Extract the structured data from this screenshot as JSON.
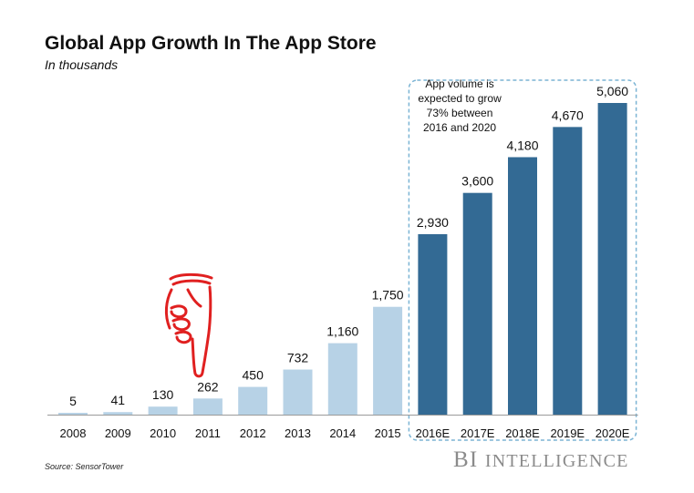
{
  "header": {
    "title": "Global App Growth In The App Store",
    "subtitle": "In thousands"
  },
  "footer": {
    "source": "Source: SensorTower",
    "brand_main": "BI",
    "brand_rest": "Intelligence"
  },
  "colors": {
    "actual": "#b7d2e6",
    "estimate": "#336a94",
    "dashed_box": "#7bb4d4",
    "hand": "#e02020"
  },
  "annotation": {
    "lines": [
      "App volume is",
      "expected to grow",
      "73% between",
      "2016 and 2020"
    ]
  },
  "pointer_icon": "pointing-hand-icon",
  "chart_data": {
    "type": "bar",
    "title": "Global App Growth In The App Store",
    "subtitle": "In thousands",
    "xlabel": "",
    "ylabel": "",
    "ylim": [
      0,
      5200
    ],
    "grid": false,
    "categories": [
      "2008",
      "2009",
      "2010",
      "2011",
      "2012",
      "2013",
      "2014",
      "2015",
      "2016E",
      "2017E",
      "2018E",
      "2019E",
      "2020E"
    ],
    "values": [
      5,
      41,
      130,
      262,
      450,
      732,
      1160,
      1750,
      2930,
      3600,
      4180,
      4670,
      5060
    ],
    "value_labels": [
      "5",
      "41",
      "130",
      "262",
      "450",
      "732",
      "1,160",
      "1,750",
      "2,930",
      "3,600",
      "4,180",
      "4,670",
      "5,060"
    ],
    "estimated": [
      false,
      false,
      false,
      false,
      false,
      false,
      false,
      false,
      true,
      true,
      true,
      true,
      true
    ]
  }
}
